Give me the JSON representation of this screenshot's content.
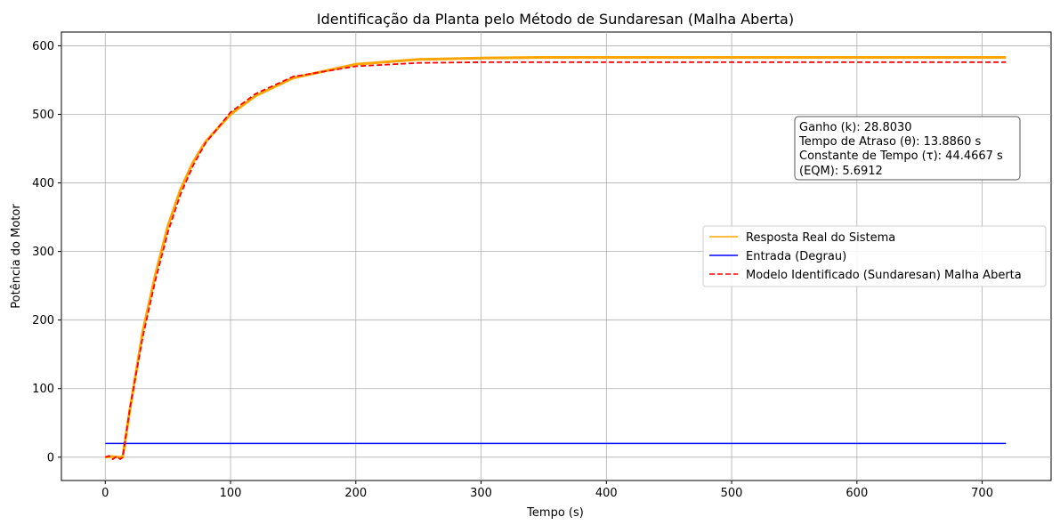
{
  "chart_data": {
    "type": "line",
    "title": "Identificação da Planta pelo Método de Sundaresan (Malha Aberta)",
    "xlabel": "Tempo (s)",
    "ylabel": "Potência do Motor",
    "xlim": [
      -35,
      755
    ],
    "ylim": [
      -34,
      620
    ],
    "xticks": [
      0,
      100,
      200,
      300,
      400,
      500,
      600,
      700
    ],
    "yticks": [
      0,
      100,
      200,
      300,
      400,
      500,
      600
    ],
    "grid": true,
    "legend_position": "center-right",
    "annotation": {
      "lines": [
        "Ganho (k): 28.8030",
        "Tempo de Atraso (θ): 13.8860 s",
        "Constante de Tempo (τ): 44.4667 s",
        "(EQM): 5.6912"
      ],
      "position": "upper-right"
    },
    "series": [
      {
        "name": "Resposta Real do Sistema",
        "color": "#ffa500",
        "style": "solid",
        "x": [
          0,
          5,
          10,
          13.9,
          20,
          30,
          40,
          50,
          60,
          70,
          80,
          100,
          120,
          150,
          200,
          250,
          300,
          350,
          400,
          450,
          500,
          550,
          600,
          650,
          700,
          719
        ],
        "y": [
          0,
          1,
          0,
          0,
          73,
          184,
          266,
          337,
          390,
          430,
          460,
          500,
          527,
          553,
          573,
          580,
          582,
          583,
          583,
          583,
          583,
          583,
          583,
          583,
          583,
          583
        ]
      },
      {
        "name": "Entrada (Degrau)",
        "color": "#0000ff",
        "style": "solid",
        "x": [
          0,
          719
        ],
        "y": [
          20,
          20
        ]
      },
      {
        "name": "Modelo Identificado (Sundaresan) Malha Aberta",
        "color": "#ff0000",
        "style": "dashed",
        "x": [
          0,
          3,
          6,
          9,
          12,
          13.9,
          20,
          30,
          40,
          50,
          60,
          70,
          80,
          100,
          120,
          150,
          200,
          250,
          300,
          350,
          400,
          500,
          600,
          700,
          719
        ],
        "y": [
          0,
          2,
          -3,
          1,
          -3,
          0,
          75,
          176,
          258,
          328,
          383,
          425,
          458,
          503,
          530,
          555,
          570,
          575,
          576,
          576,
          576,
          576,
          576,
          576,
          576
        ]
      }
    ]
  }
}
